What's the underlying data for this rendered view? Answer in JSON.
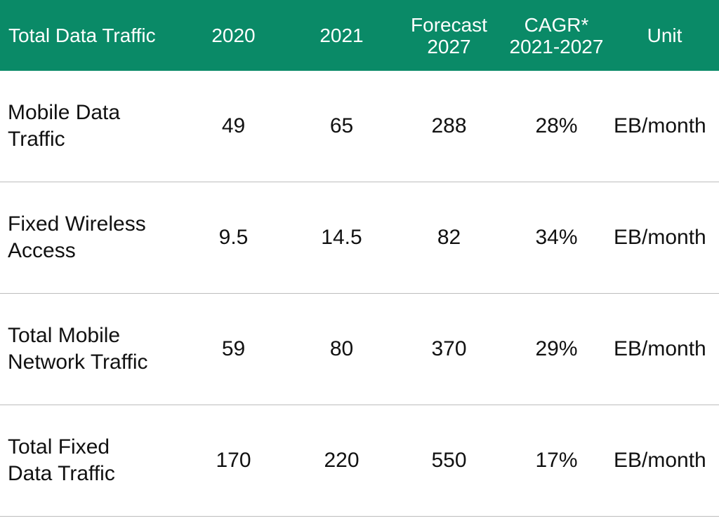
{
  "header": {
    "col0": "Total Data Traffic",
    "col1": "2020",
    "col2": "2021",
    "col3": "Forecast\n2027",
    "col4": "CAGR*\n2021-2027",
    "col5": "Unit"
  },
  "rows": [
    {
      "label": "Mobile Data\nTraffic",
      "y2020": "49",
      "y2021": "65",
      "f2027": "288",
      "cagr": "28%",
      "unit": "EB/month"
    },
    {
      "label": "Fixed Wireless\nAccess",
      "y2020": "9.5",
      "y2021": "14.5",
      "f2027": "82",
      "cagr": "34%",
      "unit": "EB/month"
    },
    {
      "label": "Total Mobile\nNetwork Traffic",
      "y2020": "59",
      "y2021": "80",
      "f2027": "370",
      "cagr": "29%",
      "unit": "EB/month"
    },
    {
      "label": "Total Fixed\nData Traffic",
      "y2020": "170",
      "y2021": "220",
      "f2027": "550",
      "cagr": "17%",
      "unit": "EB/month"
    }
  ],
  "colors": {
    "header_bg": "#0a8a67",
    "header_text": "#ffffff",
    "divider": "#bdbdbd"
  }
}
